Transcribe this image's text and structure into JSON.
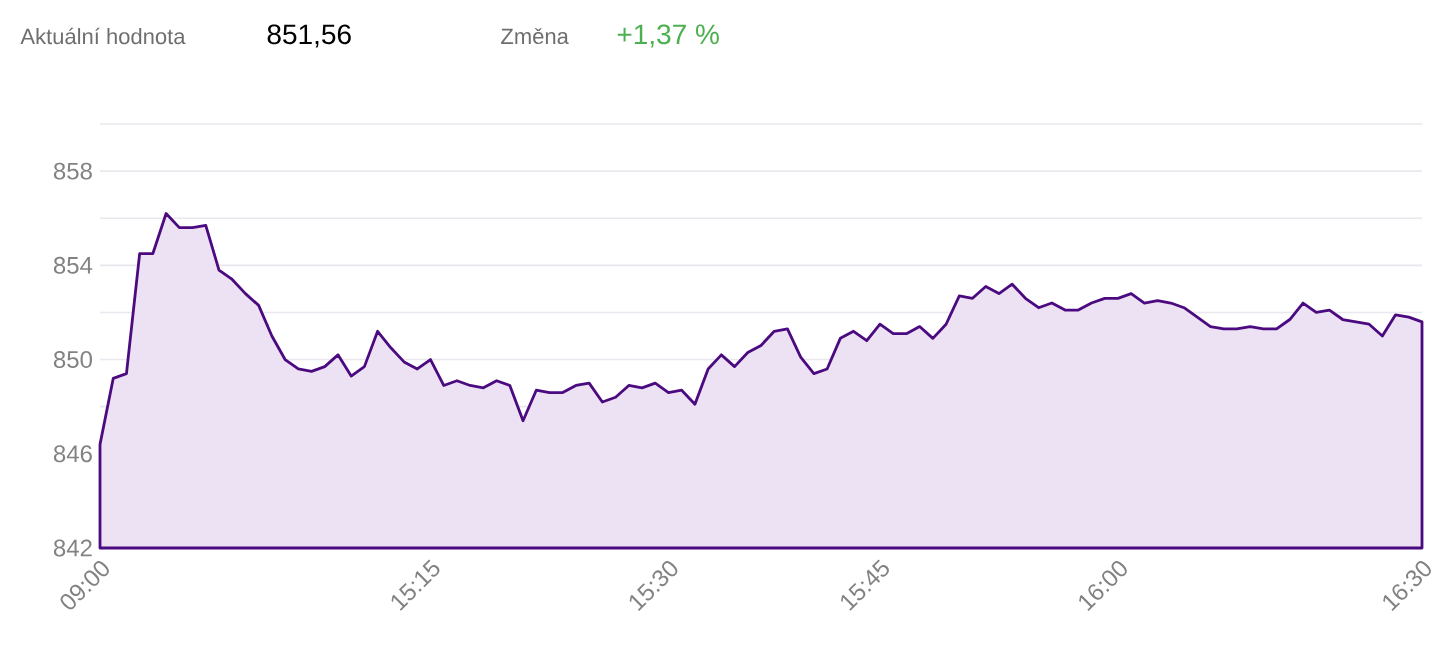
{
  "chart_data": {
    "type": "area",
    "annotations": [
      "Aktuální hodnota",
      "851,56",
      "Změna",
      "+1,37 %"
    ],
    "categories": [
      "09:00",
      null,
      null,
      null,
      null,
      null,
      null,
      null,
      null,
      null,
      null,
      null,
      null,
      null,
      null,
      null,
      null,
      null,
      null,
      null,
      null,
      null,
      null,
      null,
      null,
      "15:15",
      null,
      null,
      null,
      null,
      null,
      null,
      null,
      null,
      null,
      null,
      null,
      null,
      null,
      null,
      null,
      null,
      null,
      "15:30",
      null,
      null,
      null,
      null,
      null,
      null,
      null,
      null,
      null,
      null,
      null,
      null,
      null,
      null,
      null,
      "15:45",
      null,
      null,
      null,
      null,
      null,
      null,
      null,
      null,
      null,
      null,
      null,
      null,
      null,
      null,
      null,
      null,
      null,
      "16:00",
      null,
      null,
      null,
      null,
      null,
      null,
      null,
      null,
      null,
      null,
      null,
      null,
      null,
      null,
      null,
      null,
      null,
      null,
      null,
      null,
      null,
      null,
      "16:30"
    ],
    "series": [
      {
        "color": "#4b0a80",
        "values": [
          846.4,
          849.2,
          849.4,
          854.5,
          854.5,
          856.2,
          855.6,
          855.6,
          855.7,
          853.8,
          853.4,
          852.8,
          852.3,
          851.0,
          850.0,
          849.6,
          849.5,
          849.7,
          850.2,
          849.3,
          849.7,
          851.2,
          850.5,
          849.9,
          849.6,
          850.0,
          848.9,
          849.1,
          848.9,
          848.8,
          849.1,
          848.9,
          847.4,
          848.7,
          848.6,
          848.6,
          848.9,
          849.0,
          848.2,
          848.4,
          848.9,
          848.8,
          849.0,
          848.6,
          848.7,
          848.1,
          849.6,
          850.2,
          849.7,
          850.3,
          850.6,
          851.2,
          851.3,
          850.1,
          849.4,
          849.6,
          850.9,
          851.2,
          850.8,
          851.5,
          851.1,
          851.1,
          851.4,
          850.9,
          851.5,
          852.7,
          852.6,
          853.1,
          852.8,
          853.2,
          852.6,
          852.2,
          852.4,
          852.1,
          852.1,
          852.4,
          852.6,
          852.6,
          852.8,
          852.4,
          852.5,
          852.4,
          852.2,
          851.8,
          851.4,
          851.3,
          851.3,
          851.4,
          851.3,
          851.3,
          851.7,
          852.4,
          852.0,
          852.1,
          851.7,
          851.6,
          851.5,
          851.0,
          851.9,
          851.8,
          851.6
        ]
      }
    ],
    "ylim": [
      842,
      860
    ],
    "yticks": [
      842,
      {
        "value": 844,
        "label": null
      },
      846,
      {
        "value": 848,
        "label": null
      },
      850,
      {
        "value": 852,
        "label": null
      },
      854,
      {
        "value": 856,
        "label": null
      },
      858,
      {
        "value": 860,
        "label": null
      }
    ],
    "grid": "y"
  }
}
